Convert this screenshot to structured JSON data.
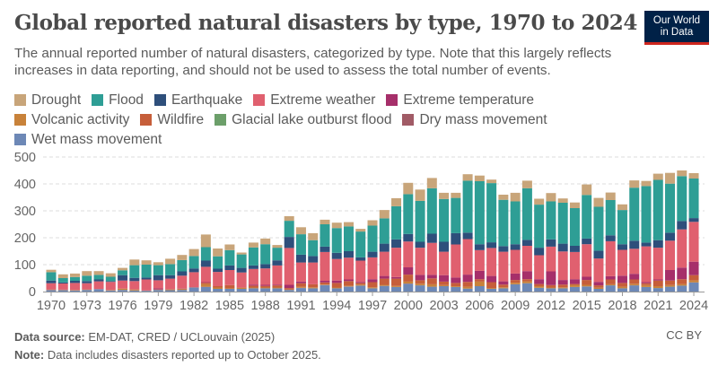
{
  "header": {
    "title": "Global reported natural disasters by type, 1970 to 2024",
    "subtitle": "The annual reported number of natural disasters, categorized by type. Note that this largely reflects increases in data reporting, and should not be used to assess the total number of events.",
    "logo_line1": "Our World",
    "logo_line2": "in Data"
  },
  "footer": {
    "source_label": "Data source:",
    "source": "EM-DAT, CRED / UCLouvain (2025)",
    "note_label": "Note:",
    "note": "Data includes disasters reported up to October 2025.",
    "license": "CC BY"
  },
  "chart_data": {
    "type": "bar",
    "stacked": true,
    "title": "Global reported natural disasters by type, 1970 to 2024",
    "xlabel": "",
    "ylabel": "",
    "ylim": [
      0,
      500
    ],
    "y_ticks": [
      "0",
      "100",
      "200",
      "300",
      "400",
      "500"
    ],
    "x_ticks": [
      "1970",
      "1973",
      "1976",
      "1979",
      "1982",
      "1985",
      "1988",
      "1991",
      "1994",
      "1997",
      "2000",
      "2003",
      "2006",
      "2009",
      "2012",
      "2015",
      "2018",
      "2021",
      "2024"
    ],
    "grid": "horizontal dashed",
    "legend": "top",
    "categories": [
      1970,
      1971,
      1972,
      1973,
      1974,
      1975,
      1976,
      1977,
      1978,
      1979,
      1980,
      1981,
      1982,
      1983,
      1984,
      1985,
      1986,
      1987,
      1988,
      1989,
      1990,
      1991,
      1992,
      1993,
      1994,
      1995,
      1996,
      1997,
      1998,
      1999,
      2000,
      2001,
      2002,
      2003,
      2004,
      2005,
      2006,
      2007,
      2008,
      2009,
      2010,
      2011,
      2012,
      2013,
      2014,
      2015,
      2016,
      2017,
      2018,
      2019,
      2020,
      2021,
      2022,
      2023,
      2024
    ],
    "stack_order_bottom_to_top": [
      "Wet mass movement",
      "Dry mass movement",
      "Glacial lake outburst flood",
      "Volcanic activity",
      "Wildfire",
      "Extreme temperature",
      "Extreme weather",
      "Earthquake",
      "Flood",
      "Drought"
    ],
    "series": [
      {
        "name": "Drought",
        "color": "#C8A57A",
        "values": [
          9,
          14,
          13,
          17,
          14,
          13,
          9,
          21,
          16,
          11,
          20,
          19,
          26,
          47,
          29,
          21,
          7,
          18,
          21,
          10,
          17,
          26,
          26,
          17,
          20,
          16,
          10,
          20,
          31,
          30,
          42,
          42,
          38,
          23,
          19,
          24,
          21,
          13,
          19,
          32,
          28,
          22,
          31,
          16,
          21,
          39,
          33,
          28,
          21,
          27,
          19,
          23,
          40,
          21,
          20
        ]
      },
      {
        "name": "Flood",
        "color": "#2E9E95",
        "values": [
          31,
          16,
          14,
          20,
          17,
          16,
          18,
          47,
          48,
          37,
          41,
          42,
          46,
          50,
          46,
          57,
          50,
          67,
          74,
          47,
          60,
          76,
          59,
          83,
          92,
          92,
          96,
          97,
          94,
          123,
          148,
          152,
          169,
          159,
          131,
          193,
          234,
          220,
          172,
          159,
          192,
          160,
          141,
          152,
          140,
          162,
          163,
          131,
          127,
          197,
          210,
          224,
          182,
          167,
          147
        ]
      },
      {
        "name": "Earthquake",
        "color": "#2E4F7B",
        "values": [
          10,
          4,
          8,
          8,
          7,
          3,
          20,
          12,
          7,
          19,
          13,
          16,
          14,
          23,
          12,
          17,
          17,
          13,
          16,
          19,
          41,
          29,
          24,
          20,
          23,
          24,
          12,
          21,
          30,
          31,
          28,
          22,
          34,
          37,
          42,
          24,
          22,
          21,
          21,
          21,
          22,
          28,
          27,
          29,
          23,
          21,
          29,
          22,
          21,
          30,
          14,
          28,
          30,
          31,
          14
        ]
      },
      {
        "name": "Extreme weather",
        "color": "#E0606F",
        "values": [
          23,
          23,
          26,
          23,
          29,
          30,
          30,
          31,
          41,
          30,
          39,
          47,
          56,
          57,
          53,
          56,
          56,
          58,
          61,
          71,
          137,
          71,
          81,
          107,
          80,
          81,
          79,
          81,
          90,
          109,
          96,
          101,
          119,
          87,
          123,
          132,
          77,
          104,
          110,
          88,
          94,
          89,
          92,
          106,
          101,
          121,
          87,
          130,
          96,
          93,
          133,
          118,
          109,
          142,
          148
        ]
      },
      {
        "name": "Extreme temperature",
        "color": "#A62F6A",
        "values": [
          0,
          0,
          0,
          0,
          0,
          0,
          0,
          0,
          0,
          4,
          0,
          1,
          0,
          2,
          0,
          0,
          0,
          4,
          4,
          3,
          12,
          6,
          0,
          6,
          9,
          6,
          4,
          11,
          10,
          6,
          27,
          20,
          13,
          24,
          20,
          27,
          31,
          23,
          12,
          24,
          30,
          18,
          51,
          17,
          18,
          12,
          13,
          12,
          27,
          21,
          4,
          4,
          39,
          43,
          50
        ]
      },
      {
        "name": "Volcanic activity",
        "color": "#C8823A",
        "values": [
          1,
          1,
          1,
          1,
          0,
          1,
          5,
          3,
          0,
          1,
          2,
          2,
          0,
          9,
          5,
          2,
          4,
          3,
          3,
          3,
          1,
          4,
          4,
          2,
          3,
          3,
          4,
          4,
          4,
          4,
          7,
          6,
          9,
          4,
          3,
          7,
          17,
          3,
          4,
          6,
          7,
          6,
          3,
          4,
          8,
          6,
          4,
          4,
          6,
          6,
          7,
          7,
          6,
          6,
          8
        ]
      },
      {
        "name": "Wildfire",
        "color": "#C65E3A",
        "values": [
          1,
          1,
          1,
          1,
          0,
          1,
          0,
          1,
          1,
          1,
          2,
          3,
          1,
          6,
          5,
          12,
          1,
          7,
          6,
          8,
          6,
          13,
          11,
          8,
          17,
          17,
          6,
          19,
          23,
          27,
          26,
          13,
          22,
          13,
          12,
          18,
          9,
          22,
          10,
          10,
          8,
          8,
          9,
          10,
          3,
          18,
          9,
          18,
          14,
          16,
          7,
          21,
          17,
          18,
          19
        ]
      },
      {
        "name": "Glacial lake outburst flood",
        "color": "#6C9F6A",
        "values": [
          0,
          0,
          0,
          0,
          0,
          0,
          0,
          0,
          0,
          0,
          0,
          0,
          0,
          0,
          0,
          0,
          0,
          0,
          0,
          0,
          0,
          0,
          0,
          0,
          0,
          0,
          0,
          0,
          0,
          0,
          0,
          0,
          0,
          0,
          0,
          0,
          0,
          0,
          0,
          0,
          0,
          0,
          0,
          0,
          0,
          0,
          0,
          0,
          0,
          0,
          0,
          0,
          0,
          0,
          0
        ]
      },
      {
        "name": "Dry mass movement",
        "color": "#A15B66",
        "values": [
          1,
          0,
          0,
          0,
          0,
          0,
          0,
          0,
          0,
          0,
          0,
          0,
          0,
          1,
          0,
          0,
          0,
          0,
          0,
          0,
          0,
          1,
          0,
          0,
          0,
          1,
          0,
          0,
          0,
          0,
          1,
          0,
          0,
          0,
          0,
          0,
          0,
          0,
          0,
          0,
          0,
          0,
          0,
          0,
          0,
          0,
          0,
          0,
          0,
          0,
          0,
          0,
          0,
          0,
          0
        ]
      },
      {
        "name": "Wet mass movement",
        "color": "#6D88B6",
        "values": [
          5,
          5,
          4,
          6,
          9,
          4,
          6,
          4,
          3,
          6,
          5,
          6,
          15,
          17,
          10,
          10,
          10,
          12,
          12,
          12,
          6,
          13,
          12,
          24,
          12,
          18,
          22,
          12,
          21,
          17,
          29,
          23,
          18,
          20,
          17,
          11,
          20,
          10,
          12,
          27,
          31,
          14,
          12,
          12,
          17,
          19,
          10,
          23,
          12,
          23,
          17,
          13,
          18,
          22,
          34
        ]
      }
    ]
  }
}
